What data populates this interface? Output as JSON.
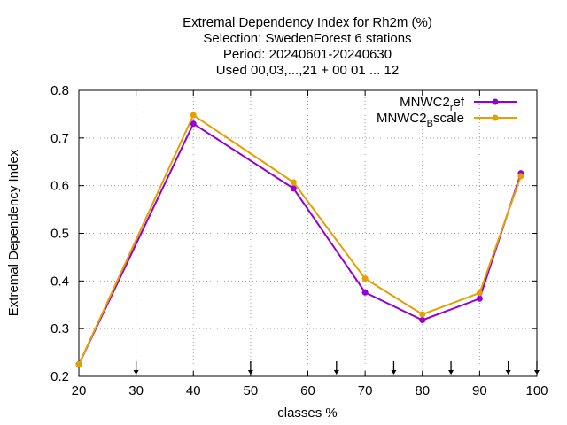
{
  "chart_data": {
    "type": "line",
    "title_lines": [
      "Extremal Dependency Index  for Rh2m (%)",
      "Selection: SwedenForest      6 stations",
      "Period: 20240601-20240630",
      "Used 00,03,...,21 + 00 01 ... 12"
    ],
    "xlabel": "classes %",
    "ylabel": "Extremal Dependency Index",
    "xlim": [
      20,
      100
    ],
    "ylim": [
      0.2,
      0.8
    ],
    "xticks": [
      20,
      30,
      40,
      50,
      60,
      70,
      80,
      90,
      100
    ],
    "yticks": [
      0.2,
      0.3,
      0.4,
      0.5,
      0.6,
      0.7,
      0.8
    ],
    "xtick_labels": [
      "20",
      "30",
      "40",
      "50",
      "60",
      "70",
      "80",
      "90",
      "100"
    ],
    "ytick_labels": [
      "0.2",
      "0.3",
      "0.4",
      "0.5",
      "0.6",
      "0.7",
      "0.8"
    ],
    "grid": true,
    "legend_position": "top-right",
    "arrow_markers_x": [
      30,
      50,
      65,
      75,
      85,
      95,
      100
    ],
    "series": [
      {
        "name_main": "MNWC2",
        "name_sub": "r",
        "name_rest": "ef",
        "color": "#9400d3",
        "x": [
          20,
          40,
          57.5,
          70,
          80,
          90,
          97.2
        ],
        "y": [
          0.225,
          0.73,
          0.594,
          0.376,
          0.318,
          0.363,
          0.626
        ]
      },
      {
        "name_main": "MNWC2",
        "name_sub": "B",
        "name_rest": "scale",
        "color": "#e69f00",
        "x": [
          20,
          40,
          57.5,
          70,
          80,
          90,
          97.2
        ],
        "y": [
          0.225,
          0.748,
          0.607,
          0.405,
          0.33,
          0.375,
          0.62
        ]
      }
    ]
  }
}
